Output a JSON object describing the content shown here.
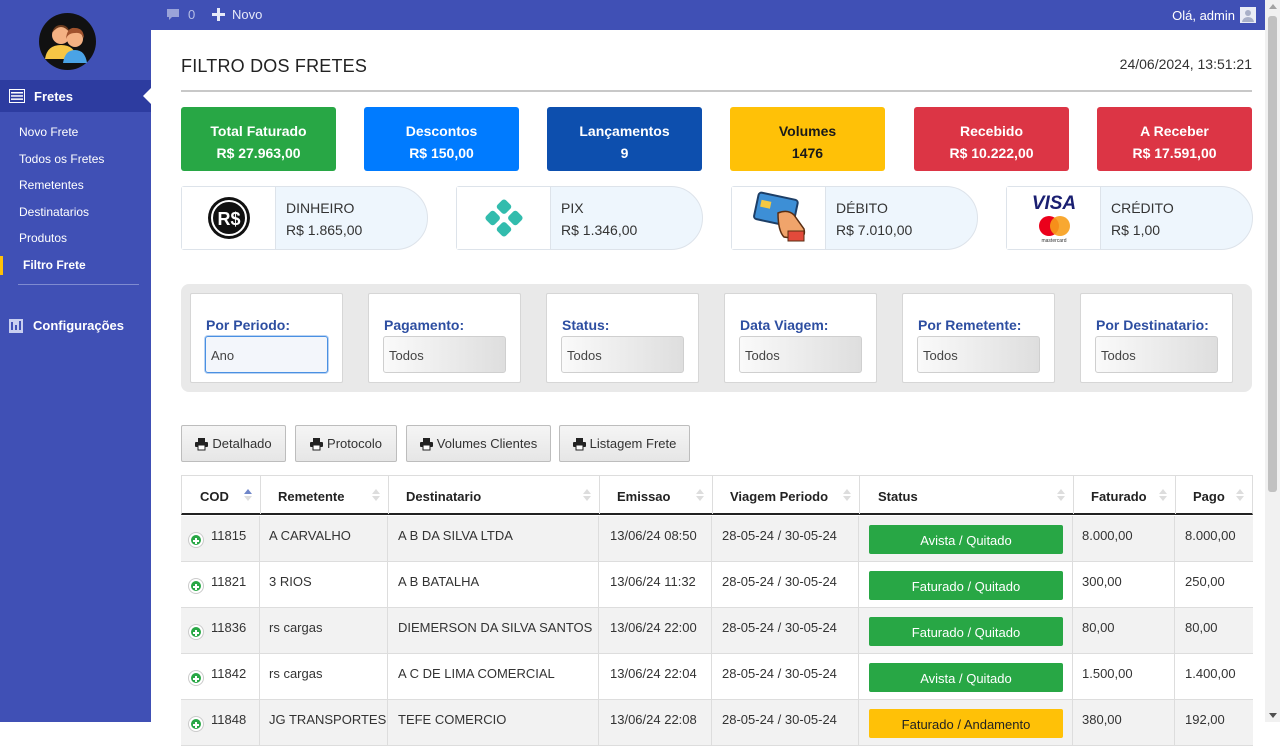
{
  "topbar": {
    "messages_count": "0",
    "novo_label": "Novo",
    "greeting": "Olá, admin"
  },
  "sidebar": {
    "active_label": "Fretes",
    "items": [
      {
        "label": "Novo Frete"
      },
      {
        "label": "Todos os Fretes"
      },
      {
        "label": "Remetentes"
      },
      {
        "label": "Destinatarios"
      },
      {
        "label": "Produtos"
      },
      {
        "label": "Filtro Frete"
      }
    ],
    "config_label": "Configurações"
  },
  "page": {
    "title": "FILTRO DOS FRETES",
    "datetime": "24/06/2024, 13:51:21"
  },
  "stats": [
    {
      "label": "Total Faturado",
      "value": "R$ 27.963,00",
      "color": "#28a745"
    },
    {
      "label": "Descontos",
      "value": "R$ 150,00",
      "color": "#007bff"
    },
    {
      "label": "Lançamentos",
      "value": "9",
      "color": "#0d4fae"
    },
    {
      "label": "Volumes",
      "value": "1476",
      "color": "#ffc107"
    },
    {
      "label": "Recebido",
      "value": "R$ 10.222,00",
      "color": "#dc3545"
    },
    {
      "label": "A Receber",
      "value": "R$ 17.591,00",
      "color": "#dc3545"
    }
  ],
  "payments": [
    {
      "name": "DINHEIRO",
      "value": "R$ 1.865,00",
      "icon": "real-currency-icon"
    },
    {
      "name": "PIX",
      "value": "R$ 1.346,00",
      "icon": "pix-icon"
    },
    {
      "name": "DÉBITO",
      "value": "R$ 7.010,00",
      "icon": "debit-card-icon"
    },
    {
      "name": "CRÉDITO",
      "value": "R$ 1,00",
      "icon": "visa-mastercard-icon",
      "visa_text": "VISA",
      "mastercard_text": "mastercard"
    }
  ],
  "filters": [
    {
      "label": "Por Periodo:",
      "value": "Ano"
    },
    {
      "label": "Pagamento:",
      "value": "Todos"
    },
    {
      "label": "Status:",
      "value": "Todos"
    },
    {
      "label": "Data Viagem:",
      "value": "Todos"
    },
    {
      "label": "Por Remetente:",
      "value": "Todos"
    },
    {
      "label": "Por Destinatario:",
      "value": "Todos"
    }
  ],
  "report_buttons": [
    "Detalhado",
    "Protocolo",
    "Volumes Clientes",
    "Listagem Frete"
  ],
  "table": {
    "headers": [
      "COD",
      "Remetente",
      "Destinatario",
      "Emissao",
      "Viagem Periodo",
      "Status",
      "Faturado",
      "Pago"
    ],
    "rows": [
      {
        "cod": "11815",
        "remetente": "A CARVALHO",
        "destinatario": "A B DA SILVA LTDA",
        "emissao": "13/06/24 08:50",
        "viagem": "28-05-24 / 30-05-24",
        "status": "Avista / Quitado",
        "status_color": "#28a745",
        "faturado": "8.000,00",
        "pago": "8.000,00"
      },
      {
        "cod": "11821",
        "remetente": "3 RIOS",
        "destinatario": "A B BATALHA",
        "emissao": "13/06/24 11:32",
        "viagem": "28-05-24 / 30-05-24",
        "status": "Faturado / Quitado",
        "status_color": "#28a745",
        "faturado": "300,00",
        "pago": "250,00"
      },
      {
        "cod": "11836",
        "remetente": "rs cargas",
        "destinatario": "DIEMERSON DA SILVA SANTOS",
        "emissao": "13/06/24 22:00",
        "viagem": "28-05-24 / 30-05-24",
        "status": "Faturado / Quitado",
        "status_color": "#28a745",
        "faturado": "80,00",
        "pago": "80,00"
      },
      {
        "cod": "11842",
        "remetente": "rs cargas",
        "destinatario": "A C DE LIMA COMERCIAL",
        "emissao": "13/06/24 22:04",
        "viagem": "28-05-24 / 30-05-24",
        "status": "Avista / Quitado",
        "status_color": "#28a745",
        "faturado": "1.500,00",
        "pago": "1.400,00"
      },
      {
        "cod": "11848",
        "remetente": "JG TRANSPORTES",
        "destinatario": "TEFE COMERCIO",
        "emissao": "13/06/24 22:08",
        "viagem": "28-05-24 / 30-05-24",
        "status": "Faturado / Andamento",
        "status_color": "#ffc107",
        "faturado": "380,00",
        "pago": "192,00"
      }
    ]
  }
}
